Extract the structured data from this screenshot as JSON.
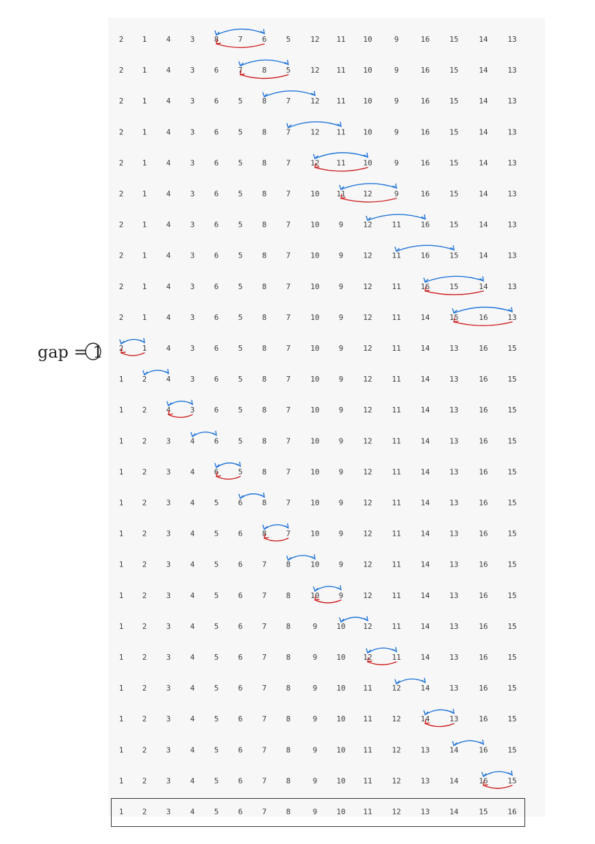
{
  "rows": [
    [
      "2",
      "1",
      "4",
      "3",
      "8",
      "7",
      "6",
      "5",
      "12",
      "11",
      "10",
      "9",
      "16",
      "15",
      "14",
      "13"
    ],
    [
      "2",
      "1",
      "4",
      "3",
      "6",
      "7",
      "8",
      "5",
      "12",
      "11",
      "10",
      "9",
      "16",
      "15",
      "14",
      "13"
    ],
    [
      "2",
      "1",
      "4",
      "3",
      "6",
      "5",
      "8",
      "7",
      "12",
      "11",
      "10",
      "9",
      "16",
      "15",
      "14",
      "13"
    ],
    [
      "2",
      "1",
      "4",
      "3",
      "6",
      "5",
      "8",
      "7",
      "12",
      "11",
      "10",
      "9",
      "16",
      "15",
      "14",
      "13"
    ],
    [
      "2",
      "1",
      "4",
      "3",
      "6",
      "5",
      "8",
      "7",
      "12",
      "11",
      "10",
      "9",
      "16",
      "15",
      "14",
      "13"
    ],
    [
      "2",
      "1",
      "4",
      "3",
      "6",
      "5",
      "8",
      "7",
      "10",
      "11",
      "12",
      "9",
      "16",
      "15",
      "14",
      "13"
    ],
    [
      "2",
      "1",
      "4",
      "3",
      "6",
      "5",
      "8",
      "7",
      "10",
      "9",
      "12",
      "11",
      "16",
      "15",
      "14",
      "13"
    ],
    [
      "2",
      "1",
      "4",
      "3",
      "6",
      "5",
      "8",
      "7",
      "10",
      "9",
      "12",
      "11",
      "16",
      "15",
      "14",
      "13"
    ],
    [
      "2",
      "1",
      "4",
      "3",
      "6",
      "5",
      "8",
      "7",
      "10",
      "9",
      "12",
      "11",
      "16",
      "15",
      "14",
      "13"
    ],
    [
      "2",
      "1",
      "4",
      "3",
      "6",
      "5",
      "8",
      "7",
      "10",
      "9",
      "12",
      "11",
      "14",
      "15",
      "16",
      "13"
    ],
    [
      "2",
      "1",
      "4",
      "3",
      "6",
      "5",
      "8",
      "7",
      "10",
      "9",
      "12",
      "11",
      "14",
      "13",
      "16",
      "15"
    ],
    [
      "1",
      "2",
      "4",
      "3",
      "6",
      "5",
      "8",
      "7",
      "10",
      "9",
      "12",
      "11",
      "14",
      "13",
      "16",
      "15"
    ],
    [
      "1",
      "2",
      "4",
      "3",
      "6",
      "5",
      "8",
      "7",
      "10",
      "9",
      "12",
      "11",
      "14",
      "13",
      "16",
      "15"
    ],
    [
      "1",
      "2",
      "3",
      "4",
      "6",
      "5",
      "8",
      "7",
      "10",
      "9",
      "12",
      "11",
      "14",
      "13",
      "16",
      "15"
    ],
    [
      "1",
      "2",
      "3",
      "4",
      "6",
      "5",
      "8",
      "7",
      "10",
      "9",
      "12",
      "11",
      "14",
      "13",
      "16",
      "15"
    ],
    [
      "1",
      "2",
      "3",
      "4",
      "5",
      "6",
      "8",
      "7",
      "10",
      "9",
      "12",
      "11",
      "14",
      "13",
      "16",
      "15"
    ],
    [
      "1",
      "2",
      "3",
      "4",
      "5",
      "6",
      "8",
      "7",
      "10",
      "9",
      "12",
      "11",
      "14",
      "13",
      "16",
      "15"
    ],
    [
      "1",
      "2",
      "3",
      "4",
      "5",
      "6",
      "7",
      "8",
      "10",
      "9",
      "12",
      "11",
      "14",
      "13",
      "16",
      "15"
    ],
    [
      "1",
      "2",
      "3",
      "4",
      "5",
      "6",
      "7",
      "8",
      "10",
      "9",
      "12",
      "11",
      "14",
      "13",
      "16",
      "15"
    ],
    [
      "1",
      "2",
      "3",
      "4",
      "5",
      "6",
      "7",
      "8",
      "9",
      "10",
      "12",
      "11",
      "14",
      "13",
      "16",
      "15"
    ],
    [
      "1",
      "2",
      "3",
      "4",
      "5",
      "6",
      "7",
      "8",
      "9",
      "10",
      "12",
      "11",
      "14",
      "13",
      "16",
      "15"
    ],
    [
      "1",
      "2",
      "3",
      "4",
      "5",
      "6",
      "7",
      "8",
      "9",
      "10",
      "11",
      "12",
      "14",
      "13",
      "16",
      "15"
    ],
    [
      "1",
      "2",
      "3",
      "4",
      "5",
      "6",
      "7",
      "8",
      "9",
      "10",
      "11",
      "12",
      "14",
      "13",
      "16",
      "15"
    ],
    [
      "1",
      "2",
      "3",
      "4",
      "5",
      "6",
      "7",
      "8",
      "9",
      "10",
      "11",
      "12",
      "13",
      "14",
      "16",
      "15"
    ],
    [
      "1",
      "2",
      "3",
      "4",
      "5",
      "6",
      "7",
      "8",
      "9",
      "10",
      "11",
      "12",
      "13",
      "14",
      "16",
      "15"
    ],
    [
      "1",
      "2",
      "3",
      "4",
      "5",
      "6",
      "7",
      "8",
      "9",
      "10",
      "11",
      "12",
      "13",
      "14",
      "15",
      "16"
    ]
  ],
  "gap_note": "gap = 1",
  "annotations": [
    {
      "row": 0,
      "from": 4,
      "to": 6,
      "swap": true
    },
    {
      "row": 1,
      "from": 5,
      "to": 7,
      "swap": true
    },
    {
      "row": 2,
      "from": 6,
      "to": 8,
      "swap": false
    },
    {
      "row": 3,
      "from": 7,
      "to": 9,
      "swap": false
    },
    {
      "row": 4,
      "from": 8,
      "to": 10,
      "swap": true
    },
    {
      "row": 5,
      "from": 9,
      "to": 11,
      "swap": true
    },
    {
      "row": 6,
      "from": 10,
      "to": 12,
      "swap": false
    },
    {
      "row": 7,
      "from": 11,
      "to": 13,
      "swap": false
    },
    {
      "row": 8,
      "from": 12,
      "to": 14,
      "swap": true
    },
    {
      "row": 9,
      "from": 13,
      "to": 15,
      "swap": true
    },
    {
      "row": 10,
      "from": 0,
      "to": 1,
      "swap": true
    },
    {
      "row": 11,
      "from": 1,
      "to": 2,
      "swap": false
    },
    {
      "row": 12,
      "from": 2,
      "to": 3,
      "swap": true
    },
    {
      "row": 13,
      "from": 3,
      "to": 4,
      "swap": false
    },
    {
      "row": 14,
      "from": 4,
      "to": 5,
      "swap": true
    },
    {
      "row": 15,
      "from": 5,
      "to": 6,
      "swap": false
    },
    {
      "row": 16,
      "from": 6,
      "to": 7,
      "swap": true
    },
    {
      "row": 17,
      "from": 7,
      "to": 8,
      "swap": false
    },
    {
      "row": 18,
      "from": 8,
      "to": 9,
      "swap": true
    },
    {
      "row": 19,
      "from": 9,
      "to": 10,
      "swap": false
    },
    {
      "row": 20,
      "from": 10,
      "to": 11,
      "swap": true
    },
    {
      "row": 21,
      "from": 11,
      "to": 12,
      "swap": false
    },
    {
      "row": 22,
      "from": 12,
      "to": 13,
      "swap": true
    },
    {
      "row": 23,
      "from": 13,
      "to": 14,
      "swap": false
    },
    {
      "row": 24,
      "from": 14,
      "to": 15,
      "swap": true
    }
  ],
  "colors": {
    "compare_arrow": "#1e73d8",
    "swap_arrow": "#cc1f1f",
    "text": "#3a3a3a"
  }
}
